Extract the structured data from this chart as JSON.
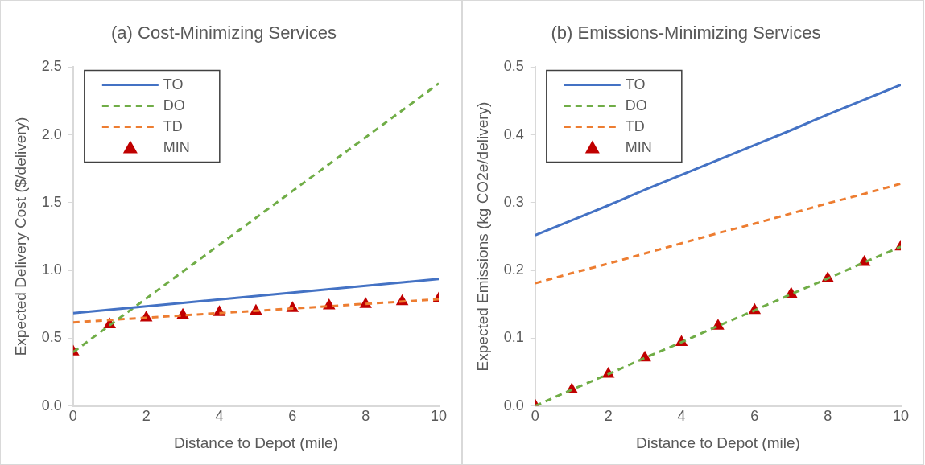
{
  "chart_data": [
    {
      "type": "line",
      "title": "(a) Cost-Minimizing Services",
      "xlabel": "Distance to Depot (mile)",
      "ylabel": "Expected Delivery Cost ($/delivery)",
      "x": [
        0,
        1,
        2,
        3,
        4,
        5,
        6,
        7,
        8,
        9,
        10
      ],
      "xlim": [
        0,
        10
      ],
      "xticks": [
        0,
        2,
        4,
        6,
        8,
        10
      ],
      "ylim": [
        0,
        2.5
      ],
      "yticks": [
        {
          "value": 0,
          "label": "0.0"
        },
        {
          "value": 0.5,
          "label": "0.5"
        },
        {
          "value": 1,
          "label": "1.0"
        },
        {
          "value": 1.5,
          "label": "1.5"
        },
        {
          "value": 2,
          "label": "2.0"
        },
        {
          "value": 2.5,
          "label": "2.5"
        }
      ],
      "legend": "top left",
      "series": [
        {
          "name": "TO",
          "type": "line",
          "color": "#4472c4",
          "line_style": "solid",
          "marker": "none",
          "values": [
            0.685,
            0.71,
            0.735,
            0.76,
            0.786,
            0.811,
            0.836,
            0.861,
            0.886,
            0.912,
            0.937
          ]
        },
        {
          "name": "DO",
          "type": "line",
          "color": "#70ad47",
          "line_style": "dashed",
          "marker": "none",
          "values": [
            0.397,
            0.595,
            0.793,
            0.991,
            1.189,
            1.388,
            1.586,
            1.784,
            1.982,
            2.18,
            2.38
          ]
        },
        {
          "name": "TD",
          "type": "line",
          "color": "#ed7d31",
          "line_style": "dashed",
          "marker": "none",
          "values": [
            0.617,
            0.634,
            0.651,
            0.668,
            0.685,
            0.702,
            0.719,
            0.736,
            0.753,
            0.77,
            0.787
          ]
        },
        {
          "name": "MIN",
          "type": "scatter",
          "color": "#c00000",
          "marker": "triangle",
          "values": [
            0.4,
            0.6,
            0.65,
            0.67,
            0.69,
            0.7,
            0.72,
            0.74,
            0.75,
            0.77,
            0.79
          ]
        }
      ]
    },
    {
      "type": "line",
      "title": "(b) Emissions-Minimizing Services",
      "xlabel": "Distance to Depot (mile)",
      "ylabel": "Expected Emissions (kg CO2e/delivery)",
      "x": [
        0,
        1,
        2,
        3,
        4,
        5,
        6,
        7,
        8,
        9,
        10
      ],
      "xlim": [
        0,
        10
      ],
      "xticks": [
        0,
        2,
        4,
        6,
        8,
        10
      ],
      "ylim": [
        0,
        0.5
      ],
      "yticks": [
        {
          "value": 0,
          "label": "0.0"
        },
        0.1,
        0.2,
        0.3,
        0.4,
        0.5
      ],
      "legend": "top left",
      "series": [
        {
          "name": "TO",
          "type": "line",
          "color": "#4472c4",
          "line_style": "solid",
          "marker": "none",
          "values": [
            0.252,
            0.274,
            0.296,
            0.319,
            0.341,
            0.363,
            0.385,
            0.407,
            0.43,
            0.452,
            0.474
          ]
        },
        {
          "name": "DO",
          "type": "line",
          "color": "#70ad47",
          "line_style": "dashed",
          "marker": "none",
          "values": [
            0,
            0.024,
            0.047,
            0.071,
            0.094,
            0.118,
            0.141,
            0.165,
            0.188,
            0.212,
            0.235
          ]
        },
        {
          "name": "TD",
          "type": "line",
          "color": "#ed7d31",
          "line_style": "dashed",
          "marker": "none",
          "values": [
            0.181,
            0.196,
            0.21,
            0.225,
            0.24,
            0.255,
            0.269,
            0.284,
            0.299,
            0.313,
            0.328
          ]
        },
        {
          "name": "MIN",
          "type": "scatter",
          "color": "#c00000",
          "marker": "triangle",
          "values": [
            0,
            0.024,
            0.047,
            0.071,
            0.094,
            0.118,
            0.141,
            0.165,
            0.188,
            0.212,
            0.235
          ]
        }
      ]
    }
  ]
}
